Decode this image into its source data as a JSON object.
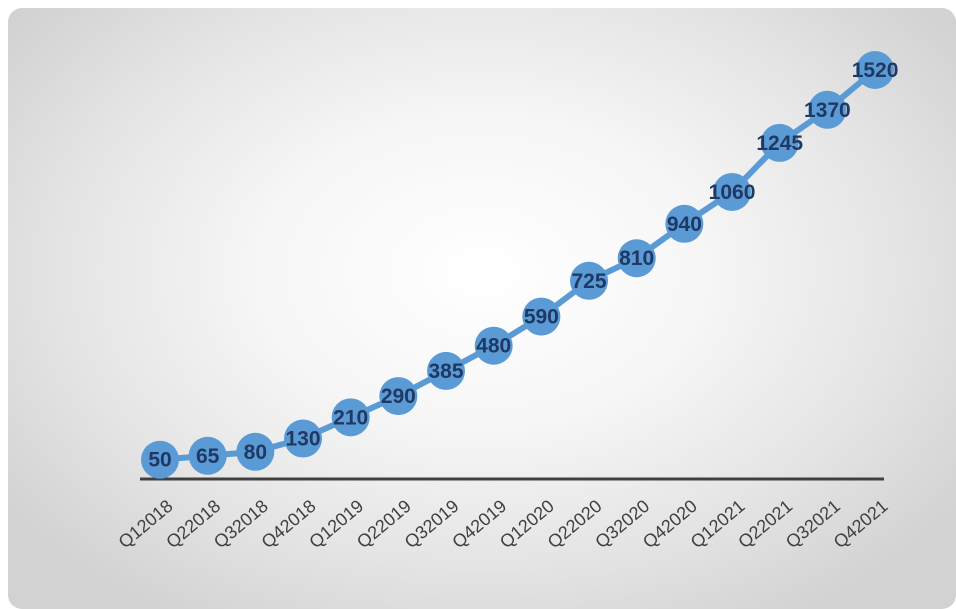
{
  "chart_data": {
    "type": "line",
    "categories": [
      "Q12018",
      "Q22018",
      "Q32018",
      "Q42018",
      "Q12019",
      "Q22019",
      "Q32019",
      "Q42019",
      "Q12020",
      "Q22020",
      "Q32020",
      "Q42020",
      "Q12021",
      "Q22021",
      "Q32021",
      "Q42021"
    ],
    "values": [
      50,
      65,
      80,
      130,
      210,
      290,
      385,
      480,
      590,
      725,
      810,
      940,
      1060,
      1245,
      1370,
      1520
    ],
    "title": "",
    "xlabel": "",
    "ylabel": "",
    "ylim": [
      0,
      1600
    ],
    "grid": false,
    "legend": "none",
    "data_labels": true,
    "colors": {
      "series": "#5b9bd5",
      "data_label": "#1f3864",
      "axis": "#404040",
      "tick_label": "#404040"
    }
  }
}
